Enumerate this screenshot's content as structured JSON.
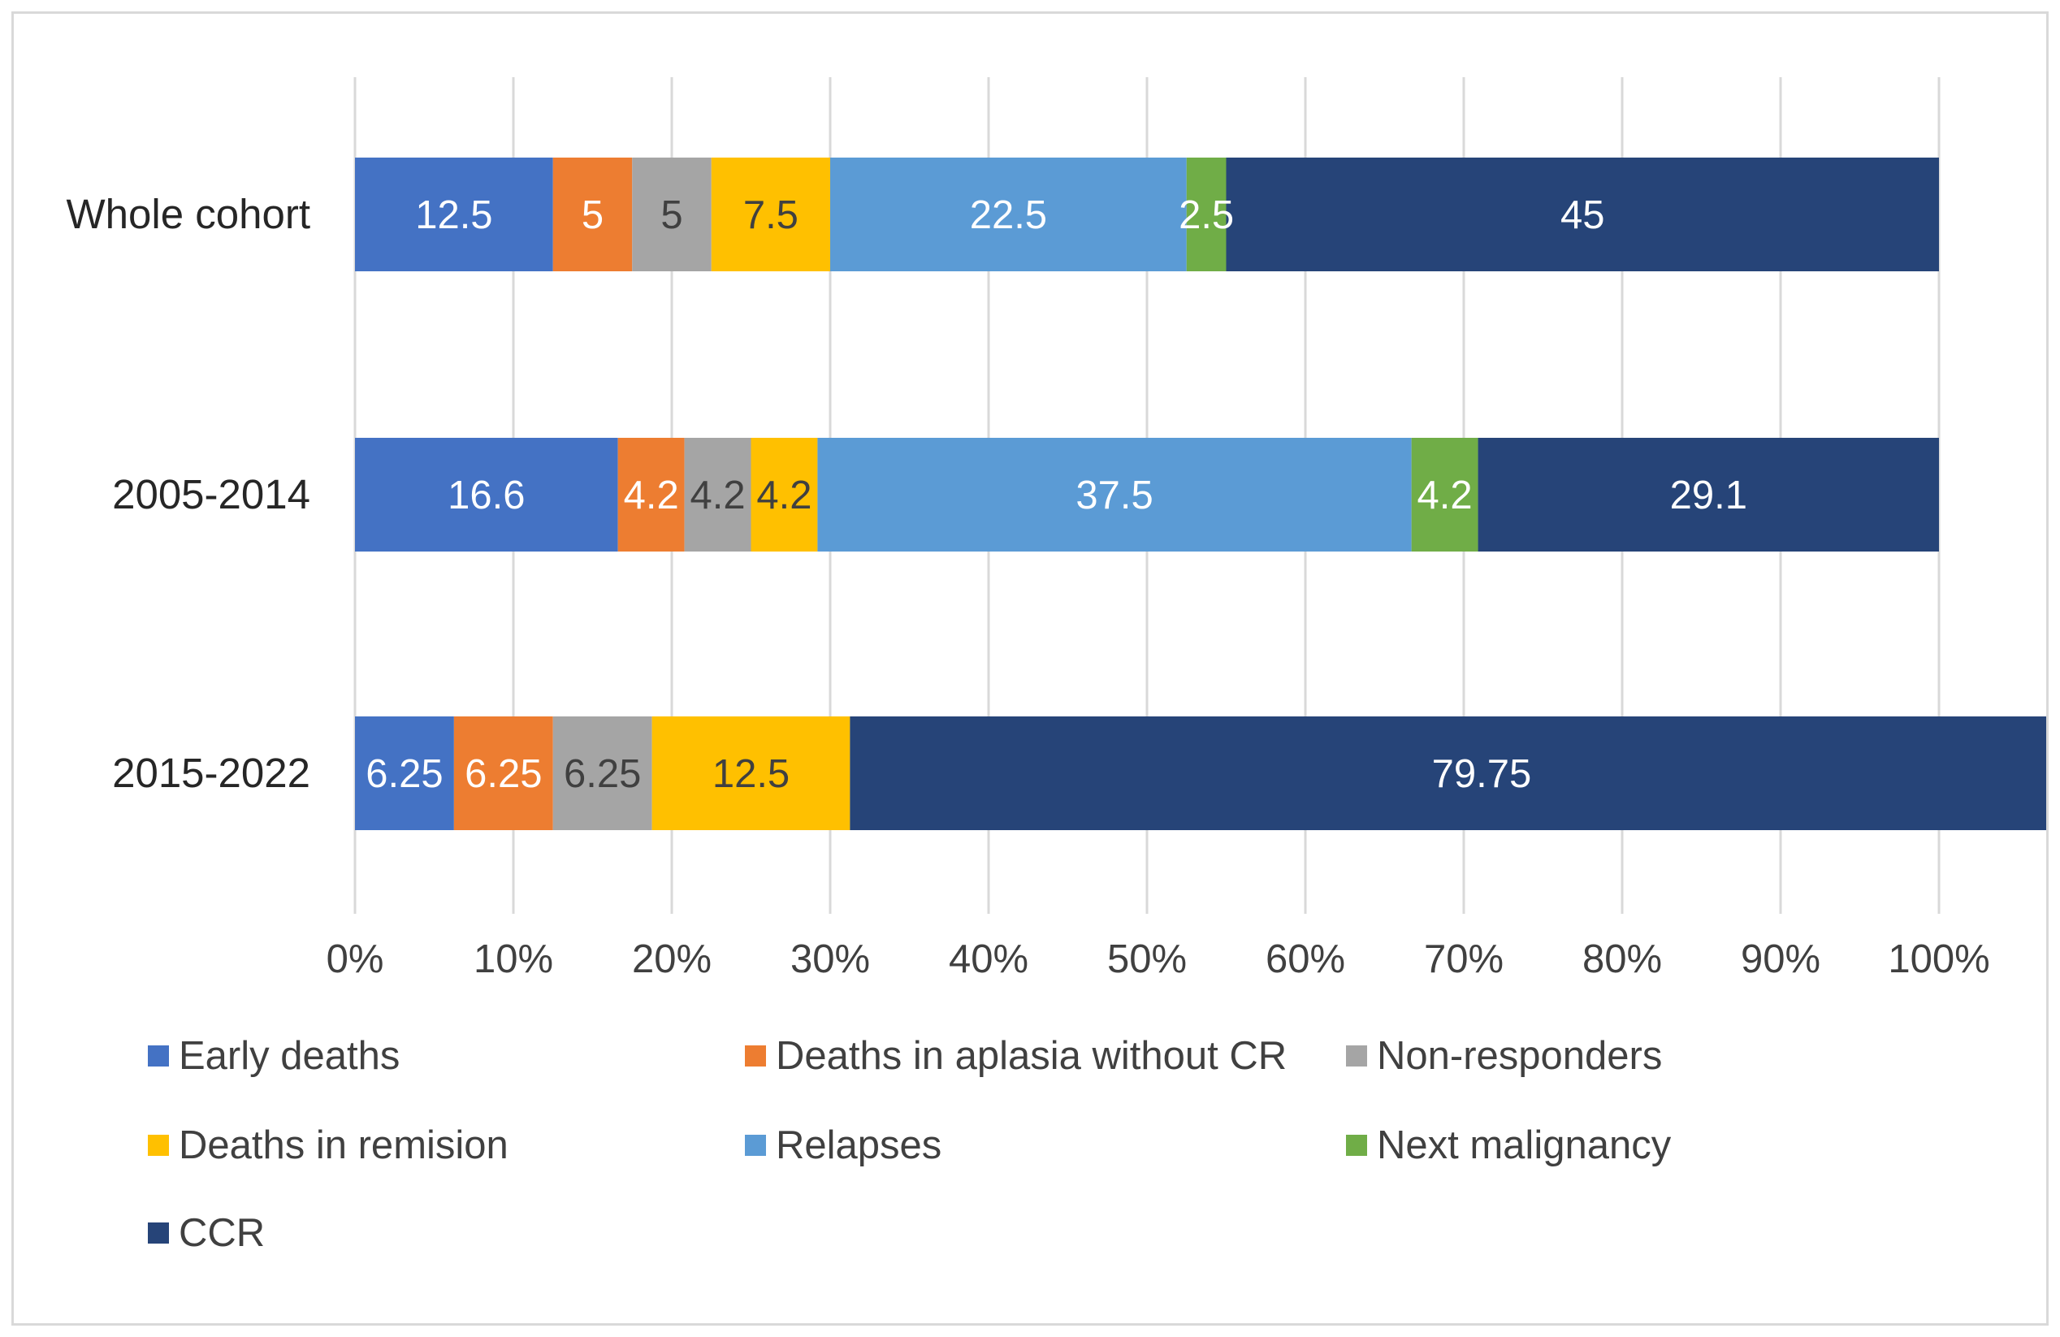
{
  "chart_data": {
    "type": "bar",
    "orientation": "horizontal",
    "stacked": "percent",
    "title": "",
    "xlabel": "",
    "ylabel": "",
    "xlim": [
      0,
      100
    ],
    "x_ticks": [
      "0%",
      "10%",
      "20%",
      "30%",
      "40%",
      "50%",
      "60%",
      "70%",
      "80%",
      "90%",
      "100%"
    ],
    "grid": "vertical",
    "legend_position": "bottom",
    "categories": [
      "Whole cohort",
      "2005-2014",
      "2015-2022"
    ],
    "series": [
      {
        "name": "Early deaths",
        "color": "#4472c4",
        "label_color": "#ffffff",
        "values": [
          12.5,
          16.6,
          6.25
        ],
        "labels": [
          "12.5",
          "16.6",
          "6.25"
        ]
      },
      {
        "name": "Deaths in aplasia without CR",
        "color": "#ed7d31",
        "label_color": "#ffffff",
        "values": [
          5,
          4.2,
          6.25
        ],
        "labels": [
          "5",
          "4.2",
          "6.25"
        ]
      },
      {
        "name": "Non-responders",
        "color": "#a5a5a5",
        "label_color": "#404040",
        "values": [
          5,
          4.2,
          6.25
        ],
        "labels": [
          "5",
          "4.2",
          "6.25"
        ]
      },
      {
        "name": "Deaths in remision",
        "color": "#ffc000",
        "label_color": "#404040",
        "values": [
          7.5,
          4.2,
          12.5
        ],
        "labels": [
          "7.5",
          "4.2",
          "12.5"
        ]
      },
      {
        "name": "Relapses",
        "color": "#5b9bd5",
        "label_color": "#ffffff",
        "values": [
          22.5,
          37.5,
          0
        ],
        "labels": [
          "22.5",
          "37.5",
          ""
        ]
      },
      {
        "name": "Next malignancy",
        "color": "#70ad47",
        "label_color": "#ffffff",
        "values": [
          2.5,
          4.2,
          0
        ],
        "labels": [
          "2.5",
          "4.2",
          ""
        ]
      },
      {
        "name": "CCR",
        "color": "#264478",
        "label_color": "#ffffff",
        "values": [
          45,
          29.1,
          79.75
        ],
        "labels": [
          "45",
          "29.1",
          "79.75"
        ]
      }
    ]
  }
}
